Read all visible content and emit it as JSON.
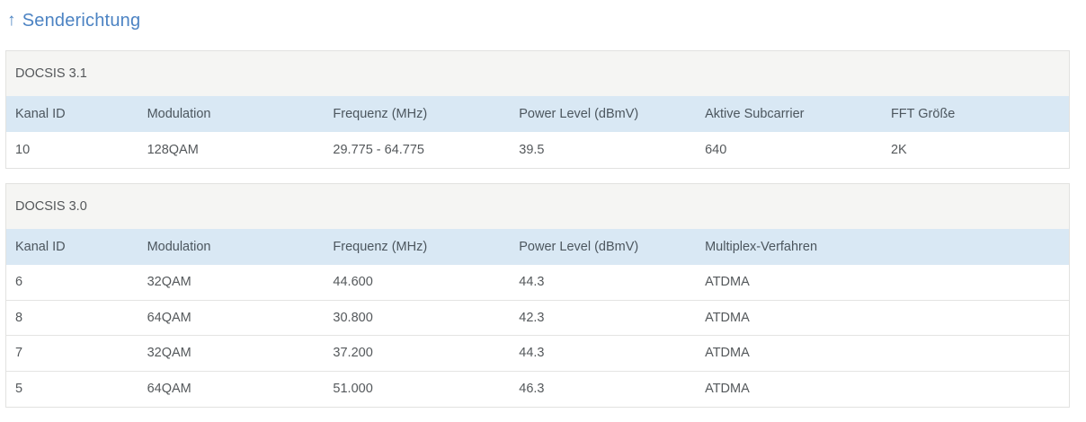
{
  "page": {
    "title_arrow": "↑",
    "title": "Senderichtung"
  },
  "colors": {
    "title_blue": "#4c83c3",
    "section_header_bg": "#f5f5f3",
    "table_header_bg": "#d9e8f4",
    "panel_border": "#e2e2e0",
    "row_separator": "#e4e4e3",
    "body_text": "#54585b"
  },
  "tables": [
    {
      "section_title": "DOCSIS 3.1",
      "columns": [
        "Kanal ID",
        "Modulation",
        "Frequenz (MHz)",
        "Power Level (dBmV)",
        "Aktive Subcarrier",
        "FFT Größe"
      ],
      "rows": [
        [
          "10",
          "128QAM",
          "29.775 - 64.775",
          "39.5",
          "640",
          "2K"
        ]
      ]
    },
    {
      "section_title": "DOCSIS 3.0",
      "columns": [
        "Kanal ID",
        "Modulation",
        "Frequenz (MHz)",
        "Power Level (dBmV)",
        "Multiplex-Verfahren"
      ],
      "rows": [
        [
          "6",
          "32QAM",
          "44.600",
          "44.3",
          "ATDMA"
        ],
        [
          "8",
          "64QAM",
          "30.800",
          "42.3",
          "ATDMA"
        ],
        [
          "7",
          "32QAM",
          "37.200",
          "44.3",
          "ATDMA"
        ],
        [
          "5",
          "64QAM",
          "51.000",
          "46.3",
          "ATDMA"
        ]
      ]
    }
  ]
}
